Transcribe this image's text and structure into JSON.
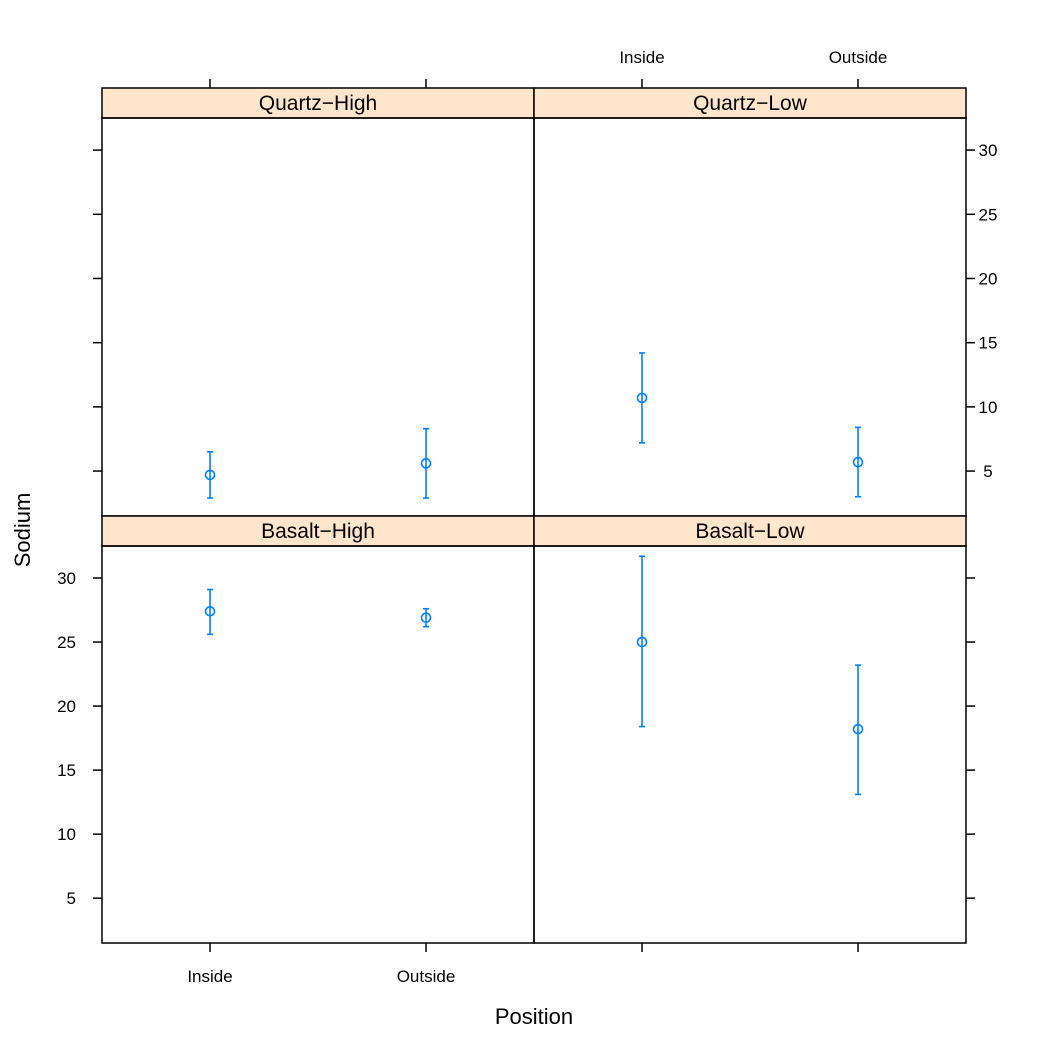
{
  "colors": {
    "strip_fill": "#FFE5CC",
    "points": "#0080FF",
    "frame": "#000000",
    "background": "#FFFFFF"
  },
  "chart_data": {
    "type": "scatter",
    "subtype": "lattice-errorbar",
    "xlabel": "Position",
    "ylabel": "Sodium",
    "categories": [
      "Inside",
      "Outside"
    ],
    "ylim": [
      1.5,
      32.5
    ],
    "yticks": [
      5,
      10,
      15,
      20,
      25,
      30
    ],
    "layout": "2x2",
    "marker": "open-circle",
    "panels": [
      {
        "label": "Quartz−High",
        "row": "top",
        "col": "left",
        "points": [
          {
            "x": "Inside",
            "y": 4.7,
            "lower": 2.9,
            "upper": 6.5
          },
          {
            "x": "Outside",
            "y": 5.6,
            "lower": 2.9,
            "upper": 8.3
          }
        ]
      },
      {
        "label": "Quartz−Low",
        "row": "top",
        "col": "right",
        "points": [
          {
            "x": "Inside",
            "y": 10.7,
            "lower": 7.2,
            "upper": 14.2
          },
          {
            "x": "Outside",
            "y": 5.7,
            "lower": 3.0,
            "upper": 8.4
          }
        ]
      },
      {
        "label": "Basalt−High",
        "row": "bottom",
        "col": "left",
        "points": [
          {
            "x": "Inside",
            "y": 27.4,
            "lower": 25.6,
            "upper": 29.1
          },
          {
            "x": "Outside",
            "y": 26.9,
            "lower": 26.2,
            "upper": 27.6
          }
        ]
      },
      {
        "label": "Basalt−Low",
        "row": "bottom",
        "col": "right",
        "points": [
          {
            "x": "Inside",
            "y": 25.0,
            "lower": 18.4,
            "upper": 31.7
          },
          {
            "x": "Outside",
            "y": 18.2,
            "lower": 13.1,
            "upper": 23.2
          }
        ]
      }
    ]
  }
}
